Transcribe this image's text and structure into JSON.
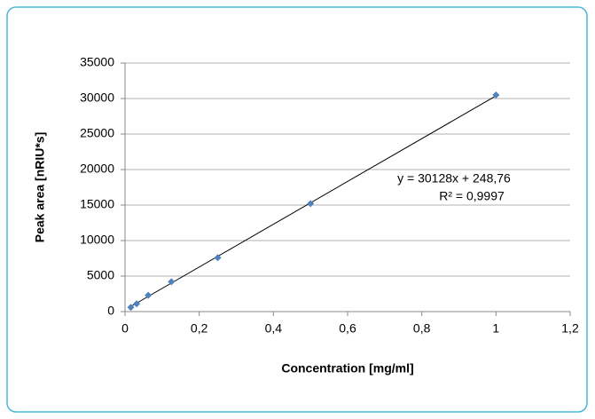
{
  "chart_data": {
    "type": "scatter",
    "x_label": "Concentration [mg/ml]",
    "y_label": "Peak area [nRIU*s]",
    "series": [
      {
        "color": "#4f81bd",
        "x": [
          0.0156,
          0.03125,
          0.0625,
          0.125,
          0.25,
          0.5,
          1
        ],
        "values": [
          600,
          1100,
          2300,
          4200,
          7600,
          15200,
          30500
        ]
      }
    ],
    "trendline": {
      "slope": 30128,
      "intercept": 248.76,
      "color": "#000000",
      "equation": "y = 30128x + 248,76",
      "r_squared": "R² = 0,9997"
    },
    "xlim": [
      0,
      1.2
    ],
    "xticks": [
      0,
      {
        "value": 0.2,
        "label": "0,2"
      },
      {
        "value": 0.4,
        "label": "0,4"
      },
      {
        "value": 0.6,
        "label": "0,6"
      },
      {
        "value": 0.8,
        "label": "0,8"
      },
      1,
      {
        "value": 1.2,
        "label": "1,2"
      }
    ],
    "ylim": [
      0,
      35000
    ],
    "yticks": [
      0,
      5000,
      10000,
      15000,
      20000,
      25000,
      30000,
      35000
    ],
    "grid": true
  }
}
